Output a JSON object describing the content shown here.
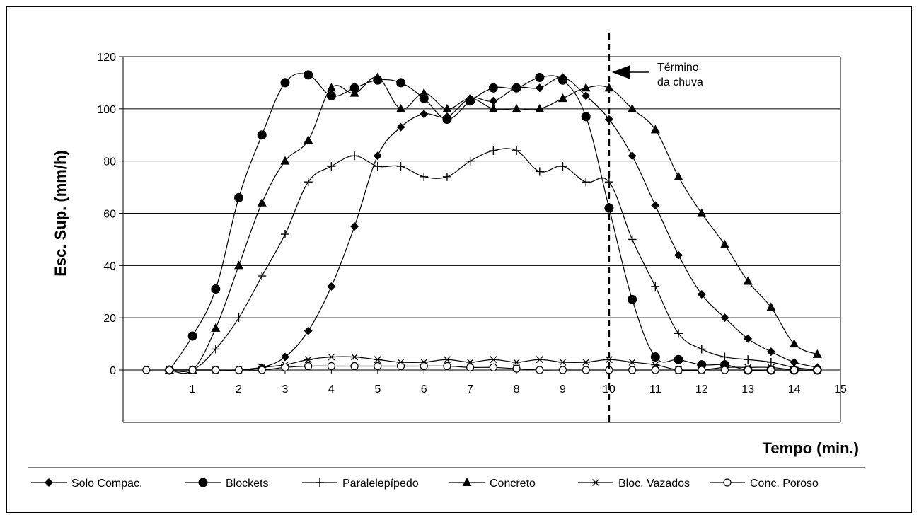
{
  "chart_data": {
    "type": "line",
    "title": "",
    "xlabel": "Tempo (min.)",
    "ylabel": "Esc. Sup. (mm/h)",
    "xlim": [
      -0.5,
      15
    ],
    "ylim": [
      0,
      120
    ],
    "xticks": [
      1,
      2,
      3,
      4,
      5,
      6,
      7,
      8,
      9,
      10,
      11,
      12,
      13,
      14,
      15
    ],
    "yticks": [
      0,
      20,
      40,
      60,
      80,
      100,
      120
    ],
    "grid": "horizontal",
    "legend_position": "bottom",
    "annotation": {
      "line1": "Término",
      "line2": "da chuva",
      "x": 10
    },
    "series": [
      {
        "name": "Solo Compac.",
        "marker": "diamond",
        "x": [
          0.5,
          1,
          1.5,
          2,
          2.5,
          3,
          3.5,
          4,
          4.5,
          5,
          5.5,
          6,
          6.5,
          7,
          7.5,
          8,
          8.5,
          9,
          9.5,
          10,
          10.5,
          11,
          11.5,
          12,
          12.5,
          13,
          13.5,
          14,
          14.5
        ],
        "values": [
          0,
          0,
          0,
          0,
          1,
          5,
          15,
          32,
          55,
          82,
          93,
          98,
          97,
          104,
          103,
          108,
          108,
          112,
          105,
          96,
          82,
          63,
          44,
          29,
          20,
          12,
          7,
          3,
          1
        ]
      },
      {
        "name": "Blockets",
        "marker": "circle",
        "x": [
          0.5,
          1,
          1.5,
          2,
          2.5,
          3,
          3.5,
          4,
          4.5,
          5,
          5.5,
          6,
          6.5,
          7,
          7.5,
          8,
          8.5,
          9,
          9.5,
          10,
          10.5,
          11,
          11.5,
          12,
          12.5,
          13,
          13.5,
          14,
          14.5
        ],
        "values": [
          0,
          13,
          31,
          66,
          90,
          110,
          113,
          105,
          108,
          111,
          110,
          104,
          96,
          103,
          108,
          108,
          112,
          111,
          97,
          62,
          27,
          5,
          4,
          2,
          2,
          0,
          0,
          0,
          0
        ]
      },
      {
        "name": "Paralelepípedo",
        "marker": "plus",
        "x": [
          0.5,
          1,
          1.5,
          2,
          2.5,
          3,
          3.5,
          4,
          4.5,
          5,
          5.5,
          6,
          6.5,
          7,
          7.5,
          8,
          8.5,
          9,
          9.5,
          10,
          10.5,
          11,
          11.5,
          12,
          12.5,
          13,
          13.5,
          14,
          14.5
        ],
        "values": [
          0,
          0,
          8,
          20,
          36,
          52,
          72,
          78,
          82,
          78,
          78,
          74,
          74,
          80,
          84,
          84,
          76,
          78,
          72,
          72,
          50,
          32,
          14,
          8,
          5,
          4,
          3,
          1,
          0
        ]
      },
      {
        "name": "Concreto",
        "marker": "triangle",
        "x": [
          0.5,
          1,
          1.5,
          2,
          2.5,
          3,
          3.5,
          4,
          4.5,
          5,
          5.5,
          6,
          6.5,
          7,
          7.5,
          8,
          8.5,
          9,
          9.5,
          10,
          10.5,
          11,
          11.5,
          12,
          12.5,
          13,
          13.5,
          14,
          14.5
        ],
        "values": [
          0,
          0,
          16,
          40,
          64,
          80,
          88,
          108,
          106,
          112,
          100,
          106,
          100,
          104,
          100,
          100,
          100,
          104,
          108,
          108,
          100,
          92,
          74,
          60,
          48,
          34,
          24,
          10,
          6
        ]
      },
      {
        "name": "Bloc. Vazados",
        "marker": "star",
        "x": [
          0.5,
          1,
          1.5,
          2,
          2.5,
          3,
          3.5,
          4,
          4.5,
          5,
          5.5,
          6,
          6.5,
          7,
          7.5,
          8,
          8.5,
          9,
          9.5,
          10,
          10.5,
          11,
          11.5,
          12,
          12.5,
          13,
          13.5,
          14,
          14.5
        ],
        "values": [
          0,
          0,
          0,
          0,
          1,
          2,
          4,
          5,
          5,
          4,
          3,
          3,
          4,
          3,
          4,
          3,
          4,
          3,
          3,
          4,
          3,
          2,
          0,
          0,
          1,
          1,
          1,
          0,
          0
        ]
      },
      {
        "name": "Conc. Poroso",
        "marker": "open-circle",
        "x": [
          0,
          0.5,
          1,
          1.5,
          2,
          2.5,
          3,
          3.5,
          4,
          4.5,
          5,
          5.5,
          6,
          6.5,
          7,
          7.5,
          8,
          8.5,
          9,
          9.5,
          10,
          10.5,
          11,
          11.5,
          12,
          12.5,
          13,
          13.5,
          14,
          14.5
        ],
        "values": [
          0,
          0,
          0,
          0,
          0,
          0,
          1,
          1.5,
          1.5,
          1.5,
          1.5,
          1.5,
          1.5,
          1.5,
          1,
          1,
          0.5,
          0,
          0,
          0,
          0,
          0,
          0,
          0,
          0,
          0,
          0,
          0,
          0,
          0
        ]
      }
    ]
  }
}
